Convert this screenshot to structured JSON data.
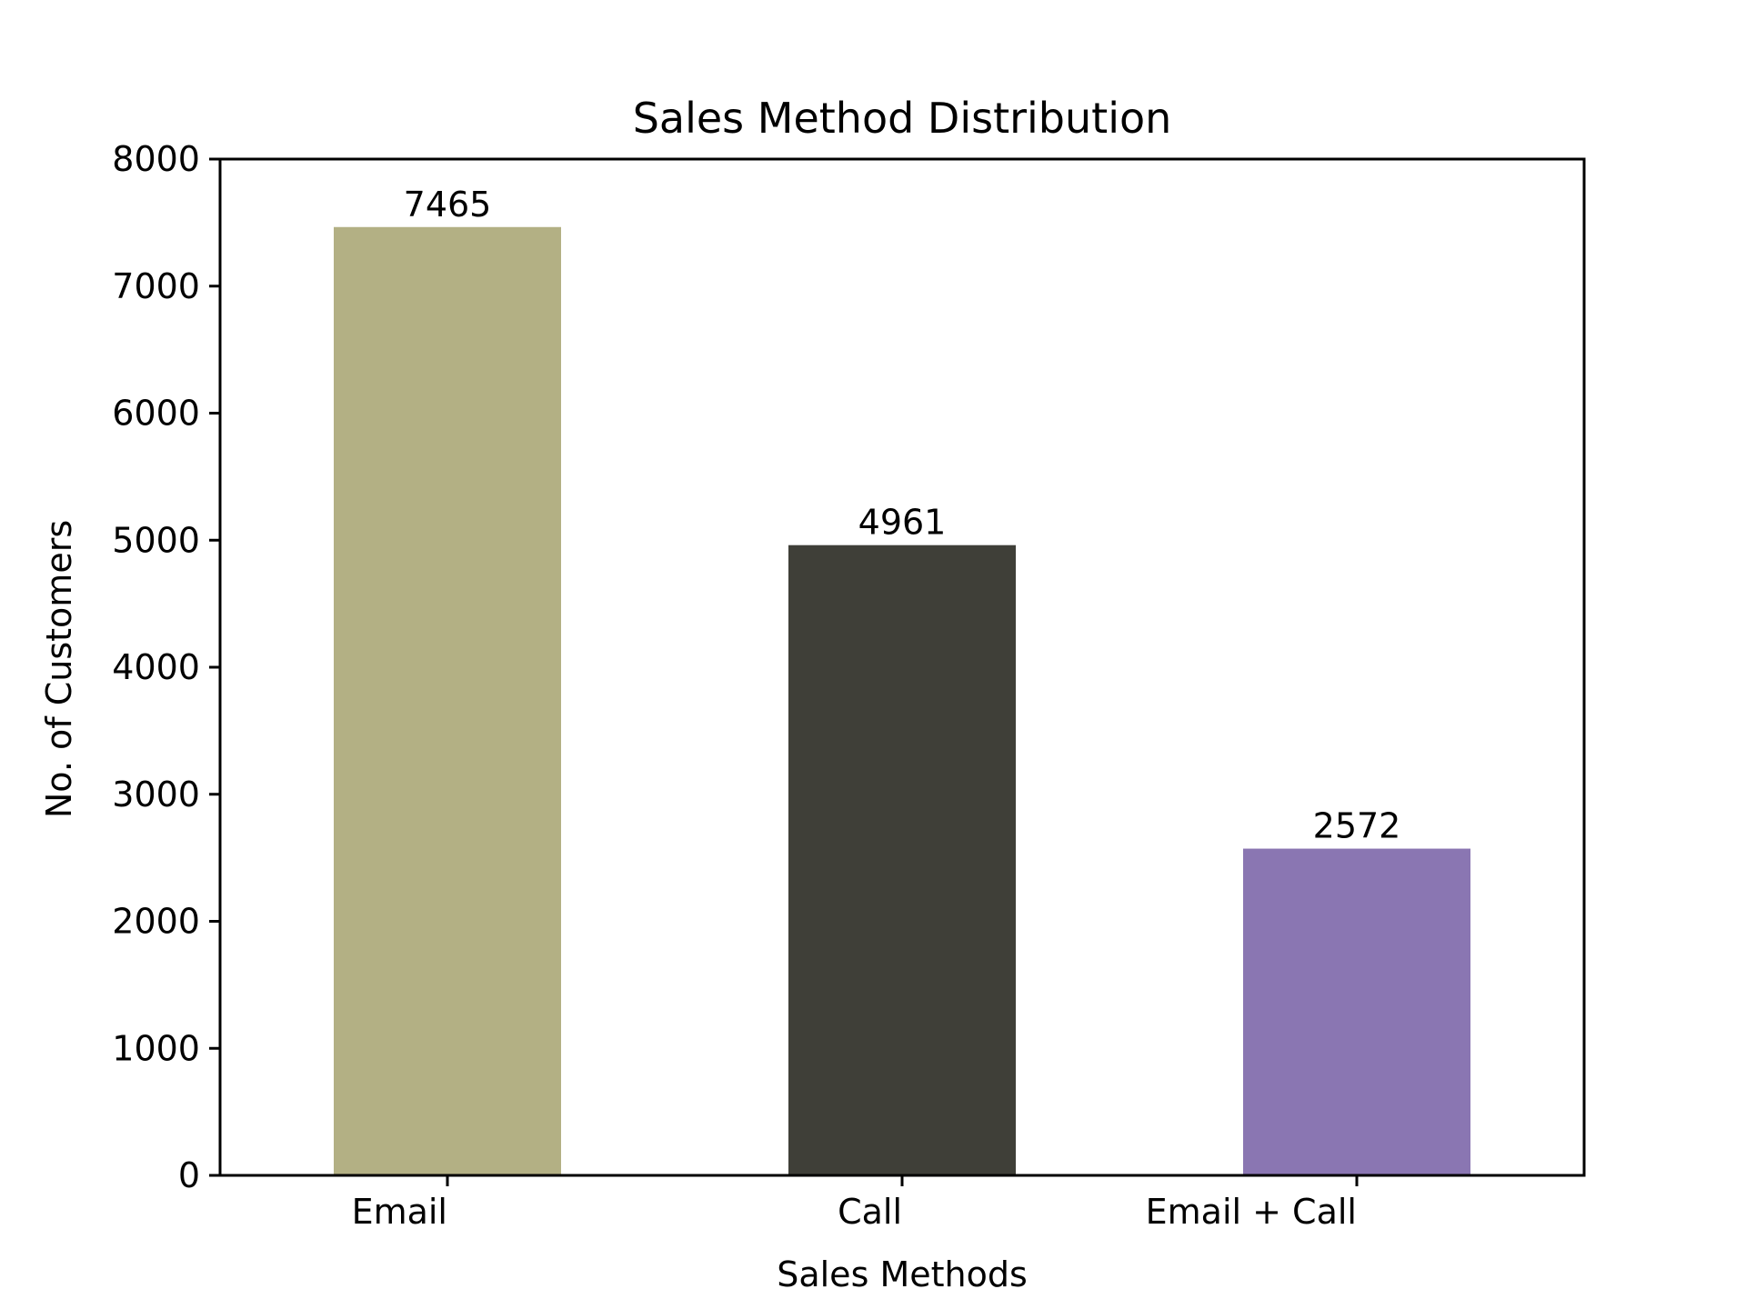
{
  "chart_data": {
    "type": "bar",
    "title": "Sales Method Distribution",
    "xlabel": "Sales Methods",
    "ylabel": "No. of Customers",
    "categories": [
      "Email",
      "Call",
      "Email + Call"
    ],
    "values": [
      7465,
      4961,
      2572
    ],
    "data_labels": [
      "7465",
      "4961",
      "2572"
    ],
    "colors": [
      "#b3b084",
      "#3f3f38",
      "#8a76b2"
    ],
    "ylim": [
      0,
      8000
    ],
    "yticks": [
      0,
      1000,
      2000,
      3000,
      4000,
      5000,
      6000,
      7000,
      8000
    ],
    "grid": false,
    "legend": false
  }
}
